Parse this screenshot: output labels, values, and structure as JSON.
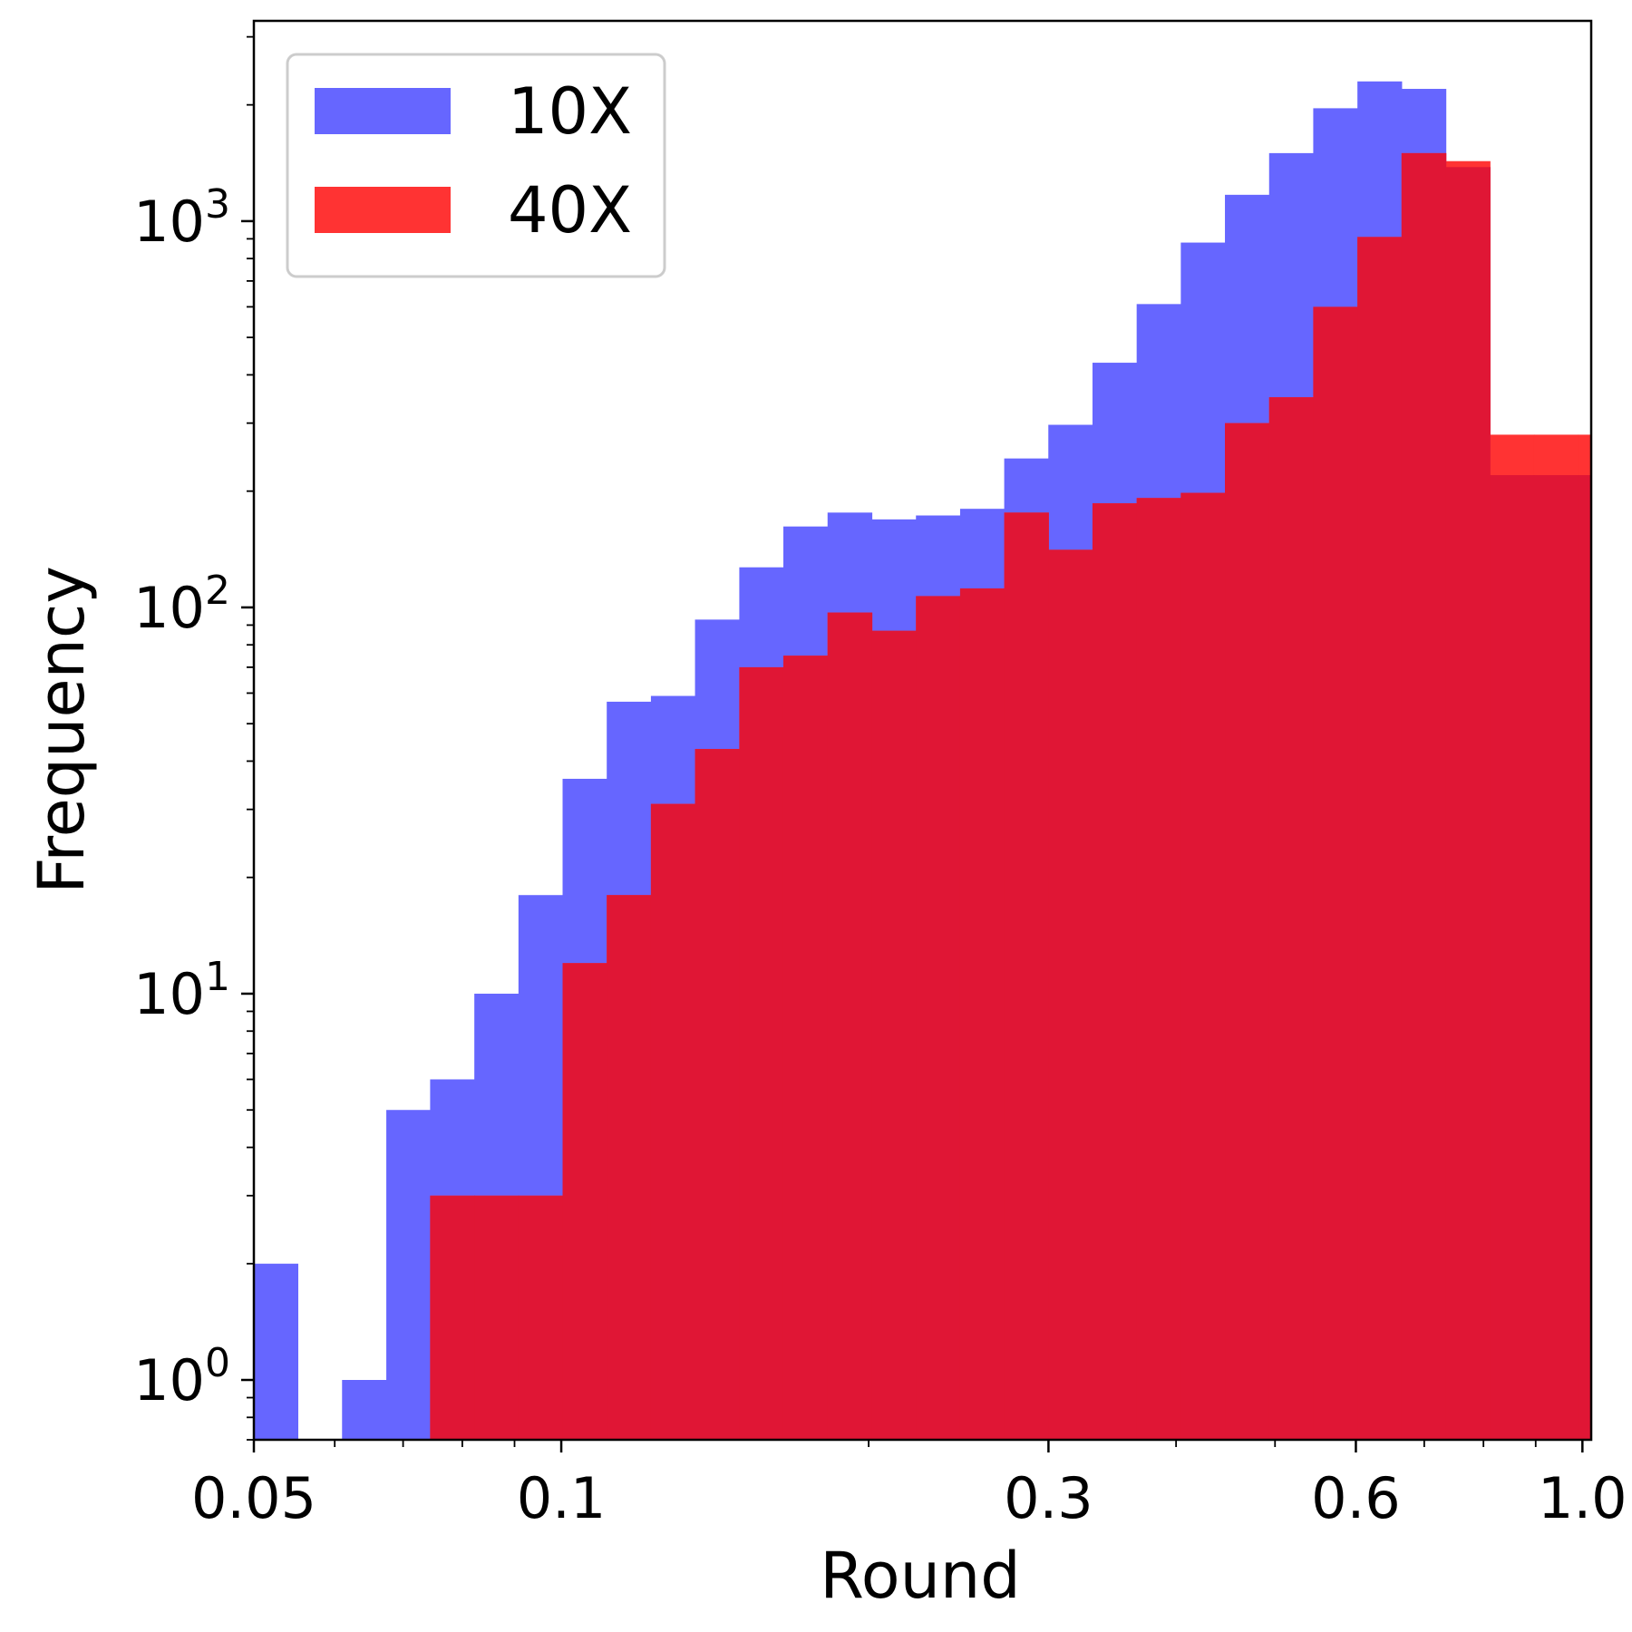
{
  "chart_data": {
    "type": "bar",
    "title": "",
    "xlabel": "Round",
    "ylabel": "Frequency",
    "xscale": "log",
    "yscale": "log",
    "xlim": [
      0.05,
      1.02
    ],
    "ylim": [
      0.7,
      3300
    ],
    "grid": false,
    "legend_position": "top-left",
    "x_ticks": [
      {
        "value": 0.05,
        "label": "0.05"
      },
      {
        "value": 0.1,
        "label": "0.1"
      },
      {
        "value": 0.3,
        "label": "0.3"
      },
      {
        "value": 0.6,
        "label": "0.6"
      },
      {
        "value": 1.0,
        "label": "1.0"
      }
    ],
    "y_ticks": [
      {
        "value": 1,
        "base": "10",
        "exp": "0"
      },
      {
        "value": 10,
        "base": "10",
        "exp": "1"
      },
      {
        "value": 100,
        "base": "10",
        "exp": "2"
      },
      {
        "value": 1000,
        "base": "10",
        "exp": "3"
      }
    ],
    "bin_edges": [
      0.05,
      0.0552,
      0.061,
      0.0674,
      0.0744,
      0.0822,
      0.0908,
      0.1003,
      0.1108,
      0.1224,
      0.1352,
      0.1494,
      0.165,
      0.1823,
      0.2014,
      0.2225,
      0.2458,
      0.2715,
      0.2999,
      0.3313,
      0.366,
      0.4043,
      0.4466,
      0.4934,
      0.545,
      0.6021,
      0.6651,
      0.7348,
      0.8117,
      0.8967,
      0.9905,
      1.02
    ],
    "series": [
      {
        "name": "10X",
        "color": "#6666ff",
        "values": [
          2,
          0,
          1,
          5,
          6,
          10,
          18,
          36,
          57,
          59,
          93,
          127,
          162,
          176,
          169,
          173,
          180,
          243,
          297,
          430,
          610,
          880,
          1170,
          1500,
          1960,
          2300,
          2200,
          1380,
          220,
          220,
          220
        ]
      },
      {
        "name": "40X",
        "color": "#ff3333",
        "values": [
          0,
          0,
          0,
          0,
          3,
          3,
          3,
          12,
          18,
          31,
          43,
          70,
          75,
          97,
          87,
          107,
          112,
          176,
          141,
          186,
          192,
          198,
          300,
          350,
          600,
          910,
          1500,
          1430,
          280,
          280,
          280
        ]
      }
    ],
    "overlap_color": "#e01635"
  }
}
